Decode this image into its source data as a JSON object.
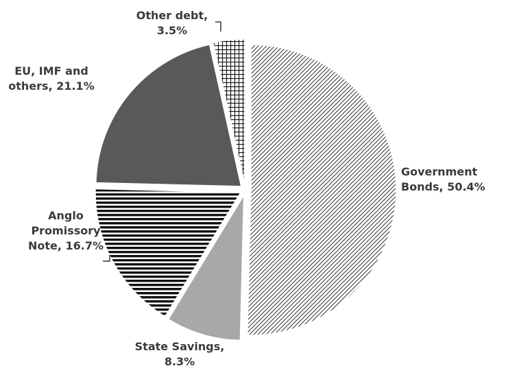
{
  "chart_data": {
    "type": "pie",
    "categories": [
      "Government Bonds",
      "State Savings",
      "Anglo Promissory Note",
      "EU, IMF and others",
      "Other debt"
    ],
    "values": [
      50.4,
      8.3,
      16.7,
      21.1,
      3.5
    ],
    "value_labels": [
      "Government Bonds, 50.4%",
      "State Savings, 8.3%",
      "Anglo Promissory Note, 16.7%",
      "EU, IMF and others, 21.1%",
      "Other debt, 3.5%"
    ],
    "colors": [
      "#333333",
      "#a8a8a8",
      "#111111",
      "#595959",
      "#111111"
    ]
  }
}
